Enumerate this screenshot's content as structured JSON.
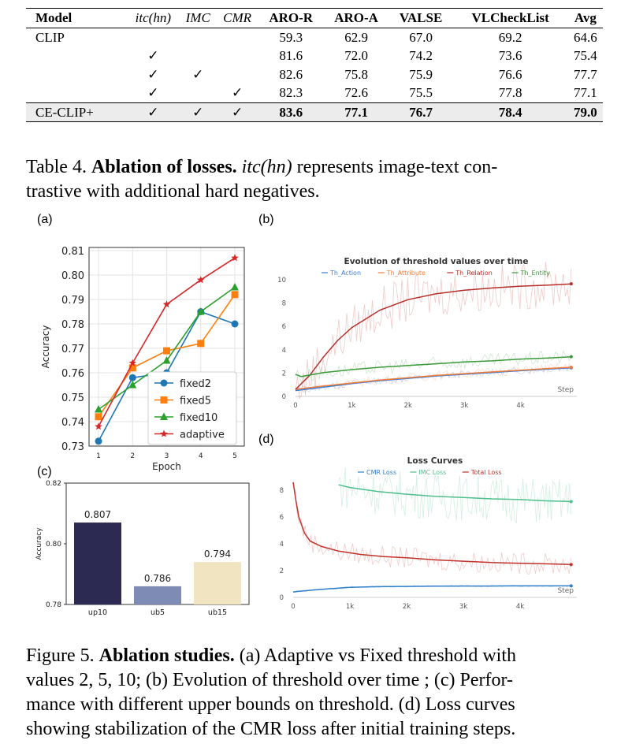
{
  "table": {
    "headers": [
      "Model",
      "itc(hn)",
      "IMC",
      "CMR",
      "ARO-R",
      "ARO-A",
      "VALSE",
      "VLCheckList",
      "Avg"
    ],
    "rows": [
      [
        "CLIP",
        "",
        "",
        "",
        "59.3",
        "62.9",
        "67.0",
        "69.2",
        "64.6"
      ],
      [
        "",
        "✓",
        "",
        "",
        "81.6",
        "72.0",
        "74.2",
        "73.6",
        "75.4"
      ],
      [
        "",
        "✓",
        "✓",
        "",
        "82.6",
        "75.8",
        "75.9",
        "76.6",
        "77.7"
      ],
      [
        "",
        "✓",
        "",
        "✓",
        "82.3",
        "72.6",
        "75.5",
        "77.8",
        "77.1"
      ],
      [
        "CE-CLIP+",
        "✓",
        "✓",
        "✓",
        "83.6",
        "77.1",
        "76.7",
        "78.4",
        "79.0"
      ]
    ]
  },
  "table_caption": {
    "label": "Table 4.",
    "title": "Ablation of losses.",
    "term": "itc(hn)",
    "rest_line1": "represents image-text con-",
    "line2": "trastive with additional hard negatives."
  },
  "panel_labels": {
    "a": "(a)",
    "b": "(b)",
    "c": "(c)",
    "d": "(d)"
  },
  "figure_caption": {
    "label": "Figure 5.",
    "title": "Ablation studies.",
    "line1_rest": "(a) Adaptive vs Fixed threshold with",
    "line2": "values 2, 5, 10; (b) Evolution of threshold over time ; (c) Perfor-",
    "line3": "mance with different upper bounds on threshold. (d) Loss curves",
    "line4": "showing stabilization of the CMR loss after initial training steps."
  },
  "chart_data": [
    {
      "panel": "a",
      "type": "line",
      "xlabel": "Epoch",
      "ylabel": "Accuracy",
      "x": [
        1,
        2,
        3,
        4,
        5
      ],
      "ylim": [
        0.73,
        0.81
      ],
      "yticks": [
        "0.73",
        "0.74",
        "0.75",
        "0.76",
        "0.77",
        "0.78",
        "0.79",
        "0.80",
        "0.81"
      ],
      "grid": true,
      "legend": "bottom-right",
      "series": [
        {
          "name": "fixed2",
          "color": "#1f77b4",
          "marker": "circle",
          "values": [
            0.732,
            0.758,
            0.76,
            0.785,
            0.78
          ]
        },
        {
          "name": "fixed5",
          "color": "#ff7f0e",
          "marker": "square",
          "values": [
            0.742,
            0.762,
            0.769,
            0.772,
            0.792
          ]
        },
        {
          "name": "fixed10",
          "color": "#2ca02c",
          "marker": "triangle",
          "values": [
            0.745,
            0.755,
            0.765,
            0.785,
            0.795
          ]
        },
        {
          "name": "adaptive",
          "color": "#d62728",
          "marker": "star",
          "values": [
            0.738,
            0.764,
            0.788,
            0.798,
            0.807
          ]
        }
      ]
    },
    {
      "panel": "b",
      "type": "line",
      "title": "Evolution of threshold values over time",
      "xlabel": "Step",
      "xticks": [
        "0",
        "1k",
        "2k",
        "3k",
        "4k"
      ],
      "yticks": [
        "0",
        "2",
        "4",
        "6",
        "8",
        "10"
      ],
      "ylim": [
        0,
        10
      ],
      "xlim": [
        0,
        5000
      ],
      "legend": "top",
      "series": [
        {
          "name": "Th_Action",
          "color": "#3a7dd8",
          "x": [
            0,
            500,
            1000,
            1500,
            2000,
            2500,
            3000,
            3500,
            4000,
            4500,
            4900
          ],
          "values": [
            0.5,
            0.8,
            1.1,
            1.35,
            1.55,
            1.75,
            1.9,
            2.05,
            2.2,
            2.35,
            2.45
          ]
        },
        {
          "name": "Th_Attribute",
          "color": "#ee7d3a",
          "x": [
            0,
            500,
            1000,
            1500,
            2000,
            2500,
            3000,
            3500,
            4000,
            4500,
            4900
          ],
          "values": [
            0.6,
            0.9,
            1.15,
            1.4,
            1.6,
            1.8,
            1.95,
            2.1,
            2.25,
            2.4,
            2.5
          ]
        },
        {
          "name": "Th_Relation",
          "color": "#b5302a",
          "x": [
            0,
            250,
            500,
            750,
            1000,
            1500,
            2000,
            2500,
            3000,
            3500,
            4000,
            4500,
            4900
          ],
          "values": [
            0.6,
            1.8,
            3.4,
            4.8,
            5.9,
            7.4,
            8.3,
            8.8,
            9.1,
            9.3,
            9.45,
            9.55,
            9.65
          ]
        },
        {
          "name": "Th_Entity",
          "color": "#3a9a3a",
          "x": [
            0,
            100,
            500,
            1000,
            1500,
            2000,
            2500,
            3000,
            3500,
            4000,
            4500,
            4900
          ],
          "values": [
            1.9,
            1.7,
            2.05,
            2.3,
            2.5,
            2.65,
            2.8,
            2.95,
            3.05,
            3.2,
            3.3,
            3.4
          ]
        }
      ]
    },
    {
      "panel": "c",
      "type": "bar",
      "categories": [
        "up10",
        "ub5",
        "ub15"
      ],
      "values": [
        0.807,
        0.786,
        0.794
      ],
      "value_labels": [
        "0.807",
        "0.786",
        "0.794"
      ],
      "colors": [
        "#2c2a53",
        "#7e8cb5",
        "#f1e4c0"
      ],
      "ylabel": "Accuracy",
      "ylim": [
        0.78,
        0.82
      ],
      "yticks": [
        "0.78",
        "0.80",
        "0.82"
      ]
    },
    {
      "panel": "d",
      "type": "line",
      "title": "Loss Curves",
      "xlabel": "Step",
      "xticks": [
        "0",
        "1k",
        "2k",
        "3k",
        "4k"
      ],
      "yticks": [
        "0",
        "2",
        "4",
        "6",
        "8"
      ],
      "ylim": [
        0,
        9
      ],
      "xlim": [
        0,
        5000
      ],
      "legend": "top",
      "series": [
        {
          "name": "CMR Loss",
          "color": "#2f7fc9",
          "x": [
            0,
            100,
            500,
            1000,
            1500,
            2000,
            2500,
            3000,
            3500,
            4000,
            4500,
            4900
          ],
          "values": [
            0.4,
            0.45,
            0.6,
            0.75,
            0.8,
            0.82,
            0.84,
            0.85,
            0.85,
            0.86,
            0.86,
            0.86
          ]
        },
        {
          "name": "IMC Loss",
          "color": "#4fbf8c",
          "x": [
            800,
            1000,
            1500,
            2000,
            2500,
            3000,
            3500,
            4000,
            4500,
            4900
          ],
          "values": [
            8.4,
            8.2,
            7.9,
            7.7,
            7.55,
            7.45,
            7.35,
            7.3,
            7.2,
            7.15
          ]
        },
        {
          "name": "Total Loss",
          "color": "#c0322b",
          "x": [
            0,
            50,
            100,
            200,
            300,
            500,
            800,
            1200,
            1600,
            2000,
            2500,
            3000,
            3500,
            4000,
            4500,
            4900
          ],
          "values": [
            8.6,
            7.2,
            6.0,
            4.8,
            4.2,
            3.8,
            3.45,
            3.2,
            3.05,
            2.95,
            2.8,
            2.7,
            2.6,
            2.55,
            2.5,
            2.45
          ]
        }
      ]
    }
  ]
}
